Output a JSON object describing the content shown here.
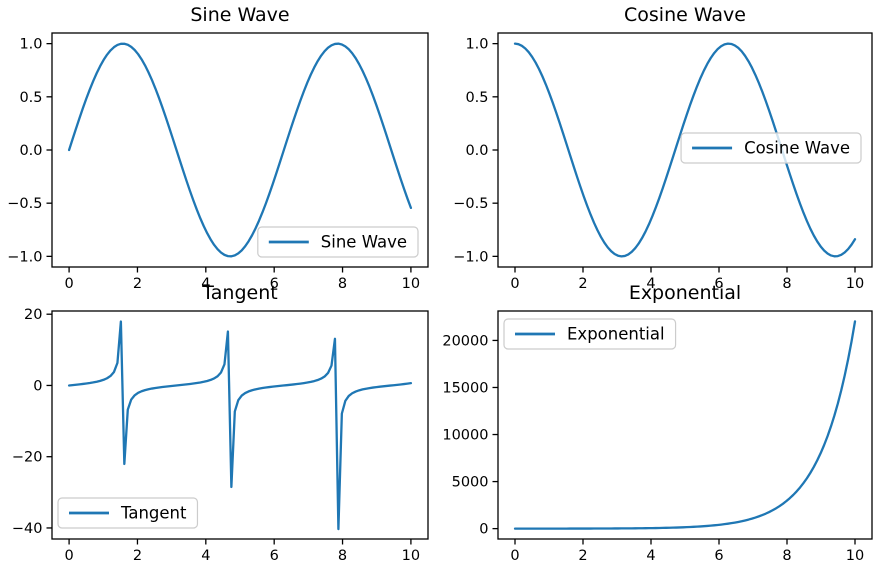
{
  "figure": {
    "background": "#ffffff",
    "accent_line_color": "#1f77b4",
    "axis_color": "#000000",
    "text_color": "#000000",
    "legend_border_color": "#cccccc",
    "legend_background": "rgba(255,255,255,0.8)"
  },
  "chart_data": [
    {
      "id": "sine",
      "type": "line",
      "title": "Sine Wave",
      "series": [
        {
          "name": "Sine Wave",
          "function": "sin",
          "x_start": 0,
          "x_end": 10,
          "num_points": 100,
          "color": "#1f77b4"
        }
      ],
      "xlim": [
        -0.5,
        10.5
      ],
      "ylim": [
        -1.1,
        1.1
      ],
      "x_ticks": {
        "values": [
          0,
          2,
          4,
          6,
          8,
          10
        ],
        "labels": [
          "0",
          "2",
          "4",
          "6",
          "8",
          "10"
        ]
      },
      "y_ticks": {
        "values": [
          -1.0,
          -0.5,
          0.0,
          0.5,
          1.0
        ],
        "labels": [
          "−1.0",
          "−0.5",
          "0.0",
          "0.5",
          "1.0"
        ]
      },
      "legend": {
        "label": "Sine Wave",
        "location": "lower right"
      },
      "grid": false
    },
    {
      "id": "cosine",
      "type": "line",
      "title": "Cosine Wave",
      "series": [
        {
          "name": "Cosine Wave",
          "function": "cos",
          "x_start": 0,
          "x_end": 10,
          "num_points": 100,
          "color": "#1f77b4"
        }
      ],
      "xlim": [
        -0.5,
        10.5
      ],
      "ylim": [
        -1.1,
        1.1
      ],
      "x_ticks": {
        "values": [
          0,
          2,
          4,
          6,
          8,
          10
        ],
        "labels": [
          "0",
          "2",
          "4",
          "6",
          "8",
          "10"
        ]
      },
      "y_ticks": {
        "values": [
          -1.0,
          -0.5,
          0.0,
          0.5,
          1.0
        ],
        "labels": [
          "−1.0",
          "−0.5",
          "0.0",
          "0.5",
          "1.0"
        ]
      },
      "legend": {
        "label": "Cosine Wave",
        "location": "center right"
      },
      "grid": false
    },
    {
      "id": "tangent",
      "type": "line",
      "title": "Tangent",
      "series": [
        {
          "name": "Tangent",
          "function": "tan",
          "x_start": 0,
          "x_end": 10,
          "num_points": 100,
          "color": "#1f77b4"
        }
      ],
      "xlim": [
        -0.5,
        10.5
      ],
      "ylim": [
        -43.1,
        20.9
      ],
      "x_ticks": {
        "values": [
          0,
          2,
          4,
          6,
          8,
          10
        ],
        "labels": [
          "0",
          "2",
          "4",
          "6",
          "8",
          "10"
        ]
      },
      "y_ticks": {
        "values": [
          -40,
          -20,
          0,
          20
        ],
        "labels": [
          "−40",
          "−20",
          "0",
          "20"
        ]
      },
      "legend": {
        "label": "Tangent",
        "location": "lower left"
      },
      "grid": false
    },
    {
      "id": "exponential",
      "type": "line",
      "title": "Exponential",
      "series": [
        {
          "name": "Exponential",
          "function": "exp",
          "x_start": 0,
          "x_end": 10,
          "num_points": 100,
          "color": "#1f77b4"
        }
      ],
      "xlim": [
        -0.5,
        10.5
      ],
      "ylim": [
        -1102,
        23128
      ],
      "x_ticks": {
        "values": [
          0,
          2,
          4,
          6,
          8,
          10
        ],
        "labels": [
          "0",
          "2",
          "4",
          "6",
          "8",
          "10"
        ]
      },
      "y_ticks": {
        "values": [
          0,
          5000,
          10000,
          15000,
          20000
        ],
        "labels": [
          "0",
          "5000",
          "10000",
          "15000",
          "20000"
        ]
      },
      "legend": {
        "label": "Exponential",
        "location": "upper left"
      },
      "grid": false
    }
  ]
}
